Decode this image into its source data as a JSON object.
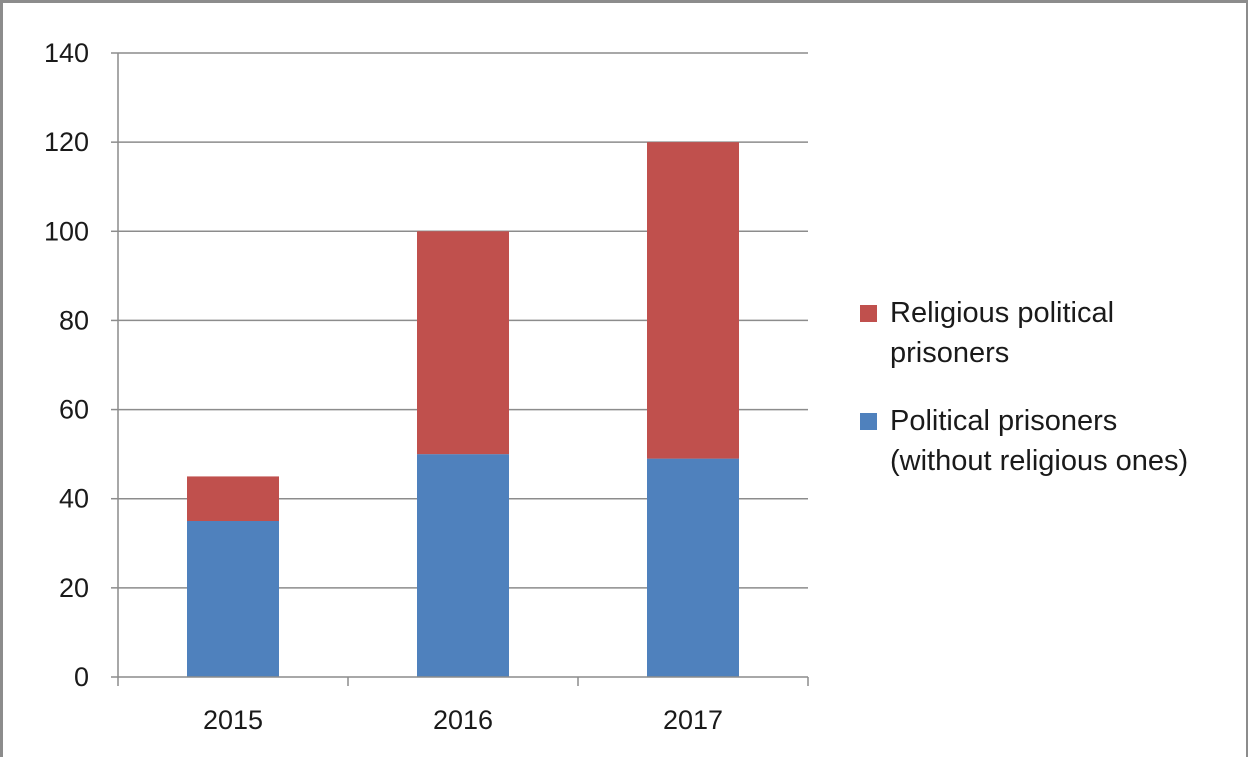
{
  "chart_data": {
    "type": "bar",
    "stacked": true,
    "categories": [
      "2015",
      "2016",
      "2017"
    ],
    "series": [
      {
        "name": "Political prisoners (without religious ones)",
        "values": [
          35,
          50,
          49
        ],
        "color": "#4f81bd"
      },
      {
        "name": "Religious political prisoners",
        "values": [
          10,
          50,
          71
        ],
        "color": "#c0504d"
      }
    ],
    "title": "",
    "xlabel": "",
    "ylabel": "",
    "ylim": [
      0,
      140
    ],
    "yticks": [
      "0",
      "20",
      "40",
      "60",
      "80",
      "100",
      "120",
      "140"
    ],
    "grid": true,
    "legend_position": "right",
    "legend": [
      {
        "lines": [
          "Religious political",
          "prisoners"
        ],
        "color": "#c0504d"
      },
      {
        "lines": [
          "Political prisoners",
          "(without religious ones)"
        ],
        "color": "#4f81bd"
      }
    ]
  }
}
